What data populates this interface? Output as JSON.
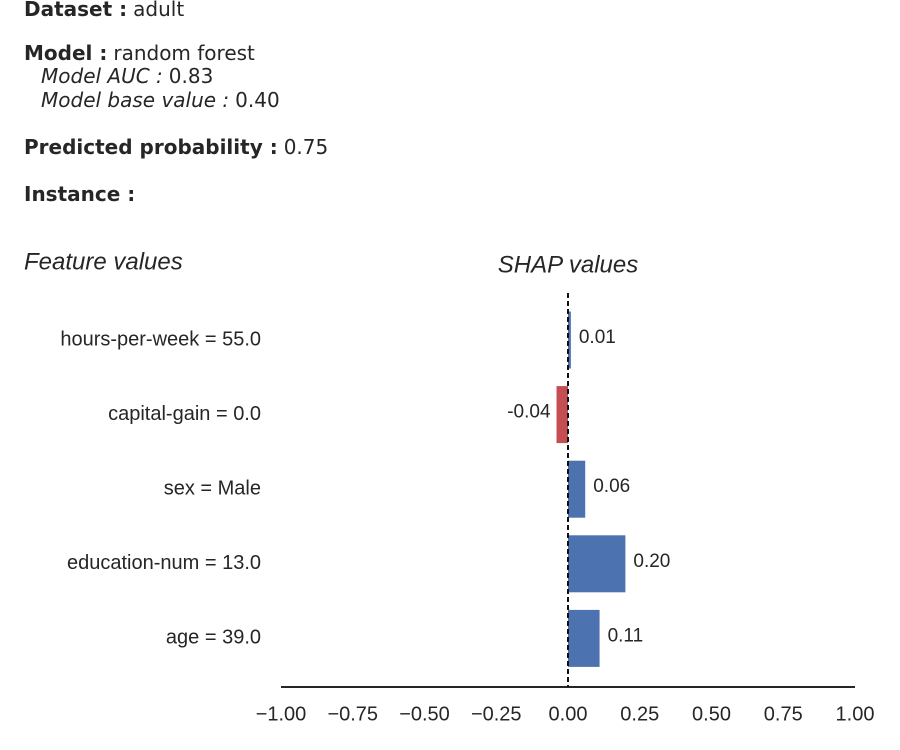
{
  "header": {
    "dataset": {
      "label": "Dataset :",
      "value": "adult"
    },
    "model": {
      "label": "Model :",
      "value": "random forest"
    },
    "auc": {
      "label": "Model AUC :",
      "value": "0.83"
    },
    "base_value": {
      "label": "Model base value :",
      "value": "0.40"
    },
    "predicted": {
      "label": "Predicted probability :",
      "value": "0.75"
    },
    "instance": {
      "label": "Instance :"
    }
  },
  "chart_data": {
    "type": "bar",
    "orientation": "horizontal",
    "title": "SHAP values",
    "ylabel": "Feature values",
    "categories": [
      "hours-per-week = 55.0",
      "capital-gain = 0.0",
      "sex = Male",
      "education-num = 13.0",
      "age = 39.0"
    ],
    "values": [
      0.01,
      -0.04,
      0.06,
      0.2,
      0.11
    ],
    "value_labels": [
      "0.01",
      "-0.04",
      "0.06",
      "0.20",
      "0.11"
    ],
    "positive_color": "#4c72b0",
    "negative_color": "#c44e52",
    "xlim": [
      -1,
      1
    ],
    "xticks": [
      {
        "value": -1,
        "label": "−1.00"
      },
      {
        "value": -0.75,
        "label": "−0.75"
      },
      {
        "value": -0.5,
        "label": "−0.50"
      },
      {
        "value": -0.25,
        "label": "−0.25"
      },
      {
        "value": 0,
        "label": "0.00"
      },
      {
        "value": 0.25,
        "label": "0.25"
      },
      {
        "value": 0.5,
        "label": "0.50"
      },
      {
        "value": 0.75,
        "label": "0.75"
      },
      {
        "value": 1,
        "label": "1.00"
      }
    ],
    "grid": false
  }
}
